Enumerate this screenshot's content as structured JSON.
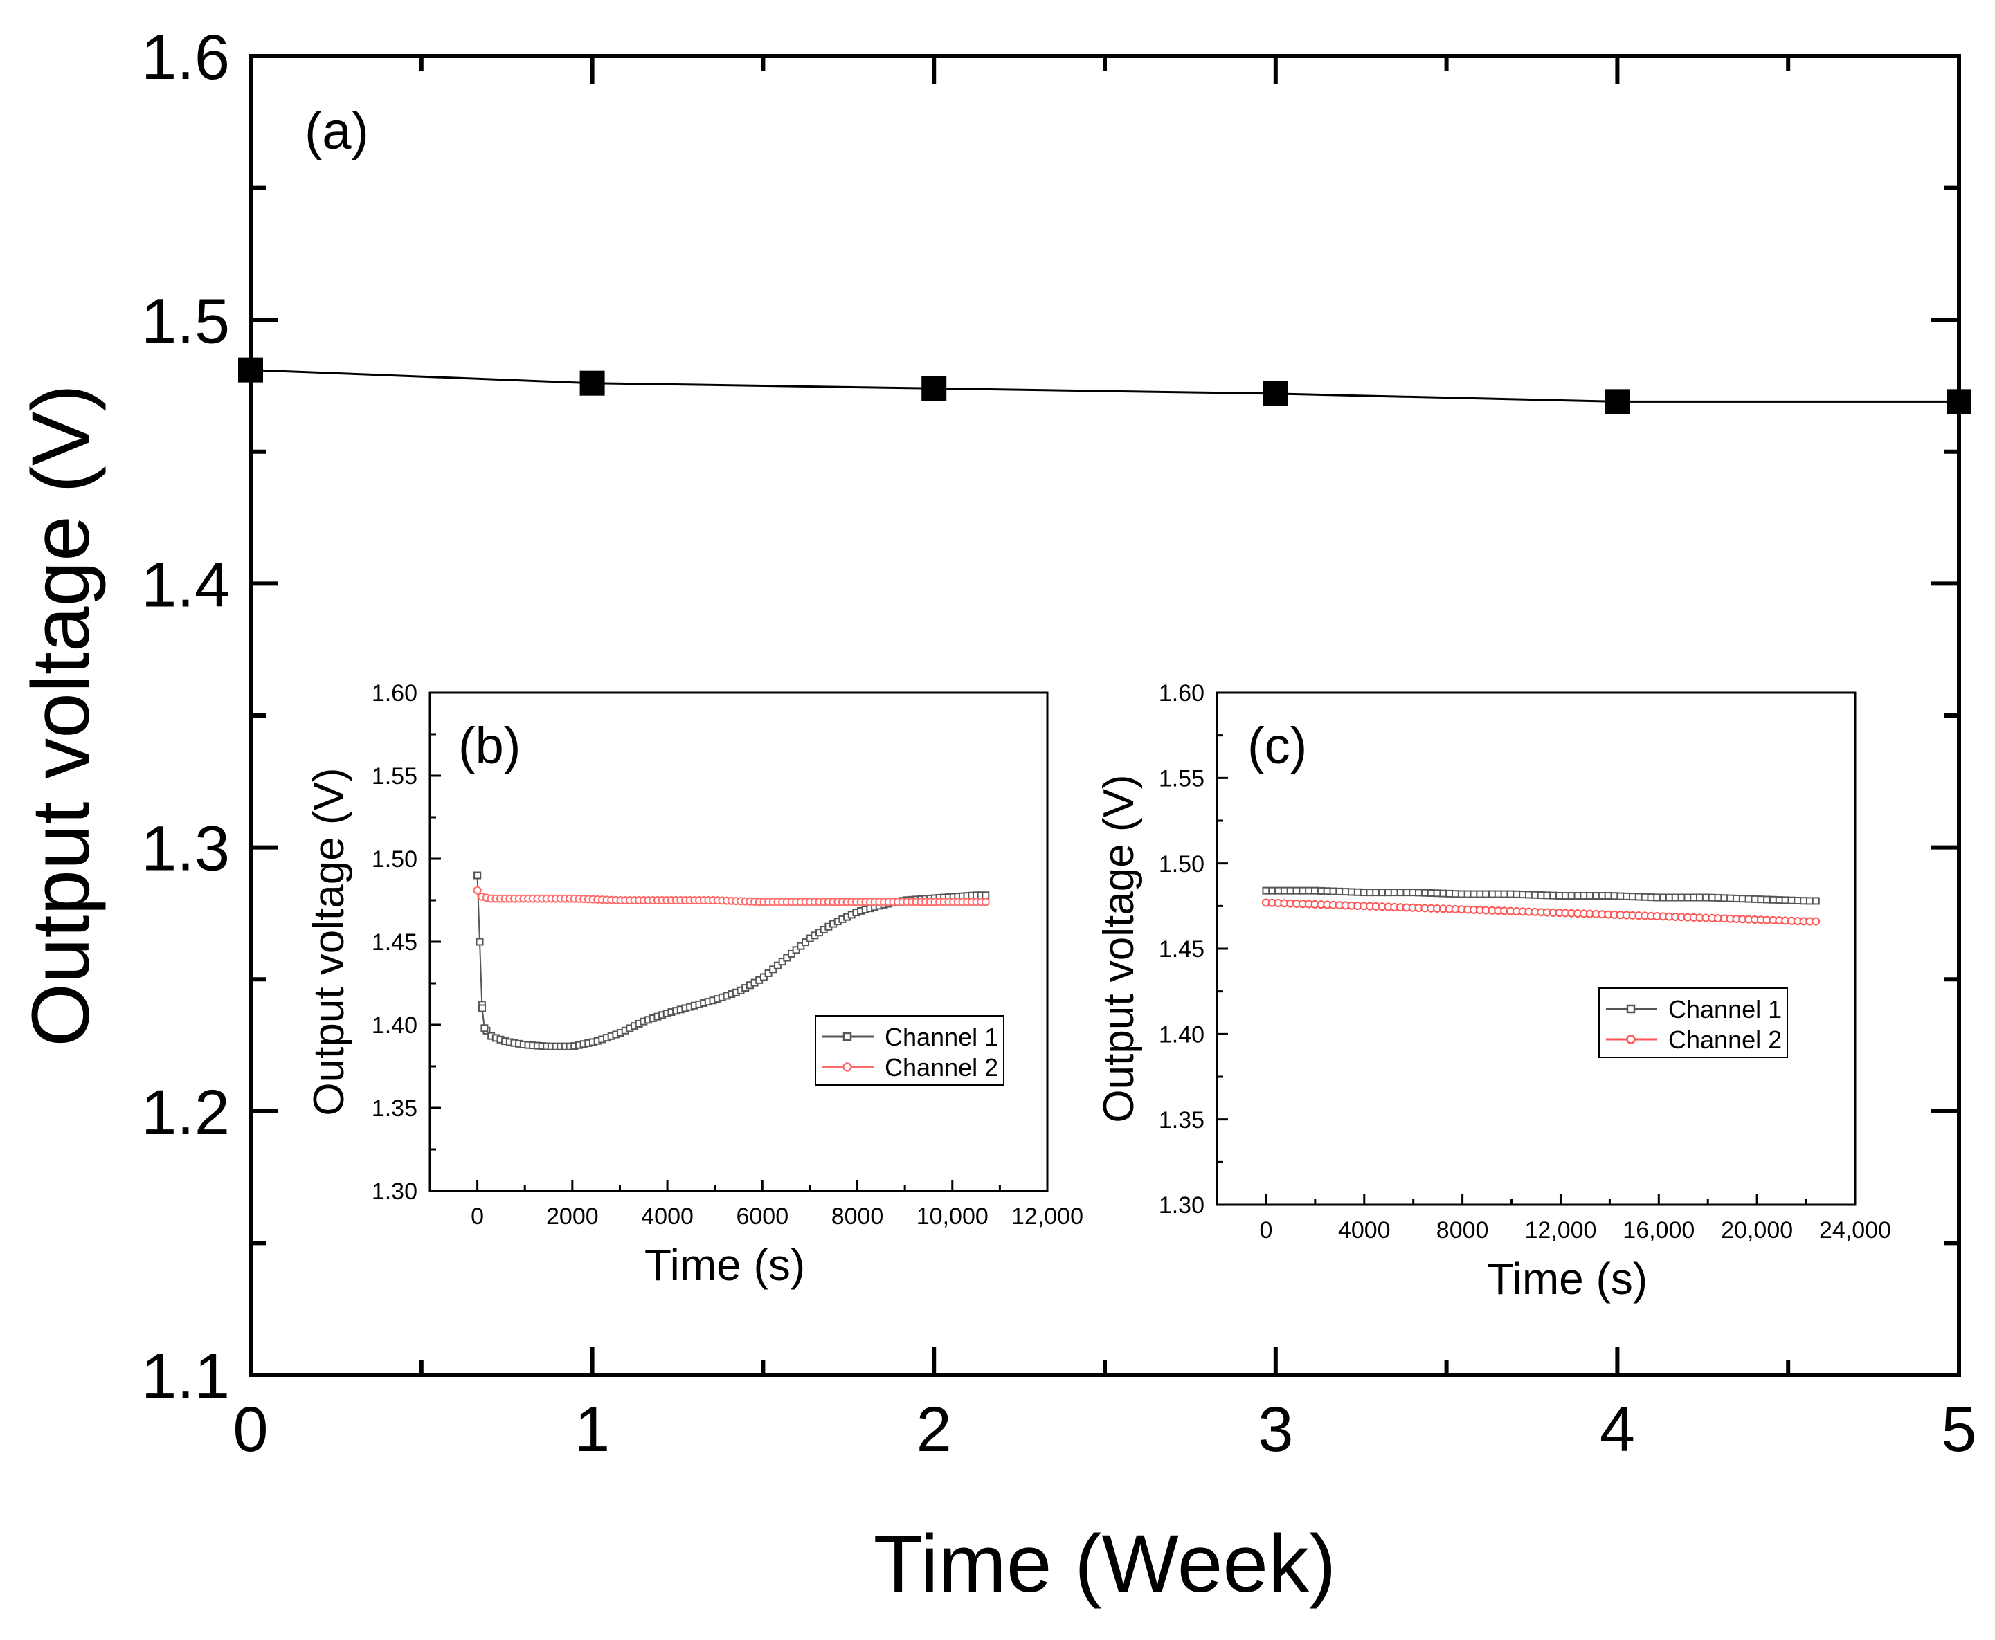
{
  "chart_data": [
    {
      "id": "a",
      "type": "line",
      "panel_label": "(a)",
      "xlabel": "Time (Week)",
      "ylabel": "Output voltage (V)",
      "xlim": [
        0,
        5
      ],
      "ylim": [
        1.1,
        1.6
      ],
      "xticks": [
        0,
        1,
        2,
        3,
        4,
        5
      ],
      "xtick_labels": [
        "0",
        "1",
        "2",
        "3",
        "4",
        "5"
      ],
      "yticks": [
        1.1,
        1.2,
        1.3,
        1.4,
        1.5,
        1.6
      ],
      "ytick_labels": [
        "1.1",
        "1.2",
        "1.3",
        "1.4",
        "1.5",
        "1.6"
      ],
      "series": [
        {
          "name": "Output voltage",
          "color": "#000000",
          "marker": "square",
          "x": [
            0,
            1,
            2,
            3,
            4,
            5
          ],
          "y": [
            1.481,
            1.476,
            1.474,
            1.472,
            1.469,
            1.469
          ]
        }
      ]
    },
    {
      "id": "b",
      "type": "line",
      "panel_label": "(b)",
      "xlabel": "Time (s)",
      "ylabel": "Output voltage (V)",
      "xlim": [
        -1000,
        12000
      ],
      "ylim": [
        1.3,
        1.6
      ],
      "xticks": [
        0,
        2000,
        4000,
        6000,
        8000,
        10000,
        12000
      ],
      "xtick_labels": [
        "0",
        "2000",
        "4000",
        "6000",
        "8000",
        "10,000",
        "12,000"
      ],
      "yticks": [
        1.3,
        1.35,
        1.4,
        1.45,
        1.5,
        1.55,
        1.6
      ],
      "ytick_labels": [
        "1.30",
        "1.35",
        "1.40",
        "1.45",
        "1.50",
        "1.55",
        "1.60"
      ],
      "legend_position": "lower-right",
      "series": [
        {
          "name": "Channel 1",
          "color": "#555555",
          "marker": "open-square",
          "x": [
            0,
            50,
            100,
            150,
            300,
            600,
            1000,
            1500,
            2000,
            2500,
            3000,
            3500,
            4000,
            4500,
            5000,
            5500,
            6000,
            6500,
            7000,
            7500,
            8000,
            8500,
            9000,
            9500,
            10000,
            10500,
            10700
          ],
          "y": [
            1.49,
            1.45,
            1.41,
            1.398,
            1.393,
            1.39,
            1.388,
            1.387,
            1.387,
            1.39,
            1.395,
            1.402,
            1.407,
            1.411,
            1.415,
            1.42,
            1.428,
            1.44,
            1.452,
            1.461,
            1.468,
            1.472,
            1.475,
            1.476,
            1.477,
            1.478,
            1.478
          ]
        },
        {
          "name": "Channel 2",
          "color": "#ff6b6b",
          "marker": "open-circle",
          "x": [
            0,
            100,
            300,
            600,
            1000,
            2000,
            3000,
            4000,
            5000,
            6000,
            7000,
            8000,
            9000,
            10000,
            10700
          ],
          "y": [
            1.481,
            1.477,
            1.476,
            1.476,
            1.476,
            1.476,
            1.475,
            1.475,
            1.475,
            1.474,
            1.474,
            1.474,
            1.474,
            1.474,
            1.474
          ]
        }
      ]
    },
    {
      "id": "c",
      "type": "line",
      "panel_label": "(c)",
      "xlabel": "Time (s)",
      "ylabel": "Output voltage (V)",
      "xlim": [
        -2000,
        24000
      ],
      "ylim": [
        1.3,
        1.6
      ],
      "xticks": [
        0,
        4000,
        8000,
        12000,
        16000,
        20000,
        24000
      ],
      "xtick_labels": [
        "0",
        "4000",
        "8000",
        "12,000",
        "16,000",
        "20,000",
        "24,000"
      ],
      "yticks": [
        1.3,
        1.35,
        1.4,
        1.45,
        1.5,
        1.55,
        1.6
      ],
      "ytick_labels": [
        "1.30",
        "1.35",
        "1.40",
        "1.45",
        "1.50",
        "1.55",
        "1.60"
      ],
      "legend_position": "center-right",
      "series": [
        {
          "name": "Channel 1",
          "color": "#555555",
          "marker": "open-square",
          "x": [
            0,
            2000,
            4000,
            6000,
            8000,
            10000,
            12000,
            14000,
            16000,
            18000,
            20000,
            22000,
            22400
          ],
          "y": [
            1.484,
            1.484,
            1.483,
            1.483,
            1.482,
            1.482,
            1.481,
            1.481,
            1.48,
            1.48,
            1.479,
            1.478,
            1.478
          ]
        },
        {
          "name": "Channel 2",
          "color": "#ff5555",
          "marker": "open-circle",
          "x": [
            0,
            2000,
            4000,
            6000,
            8000,
            10000,
            12000,
            14000,
            16000,
            18000,
            20000,
            22000,
            22400
          ],
          "y": [
            1.477,
            1.476,
            1.475,
            1.474,
            1.473,
            1.472,
            1.471,
            1.47,
            1.469,
            1.468,
            1.467,
            1.466,
            1.466
          ]
        }
      ]
    }
  ]
}
